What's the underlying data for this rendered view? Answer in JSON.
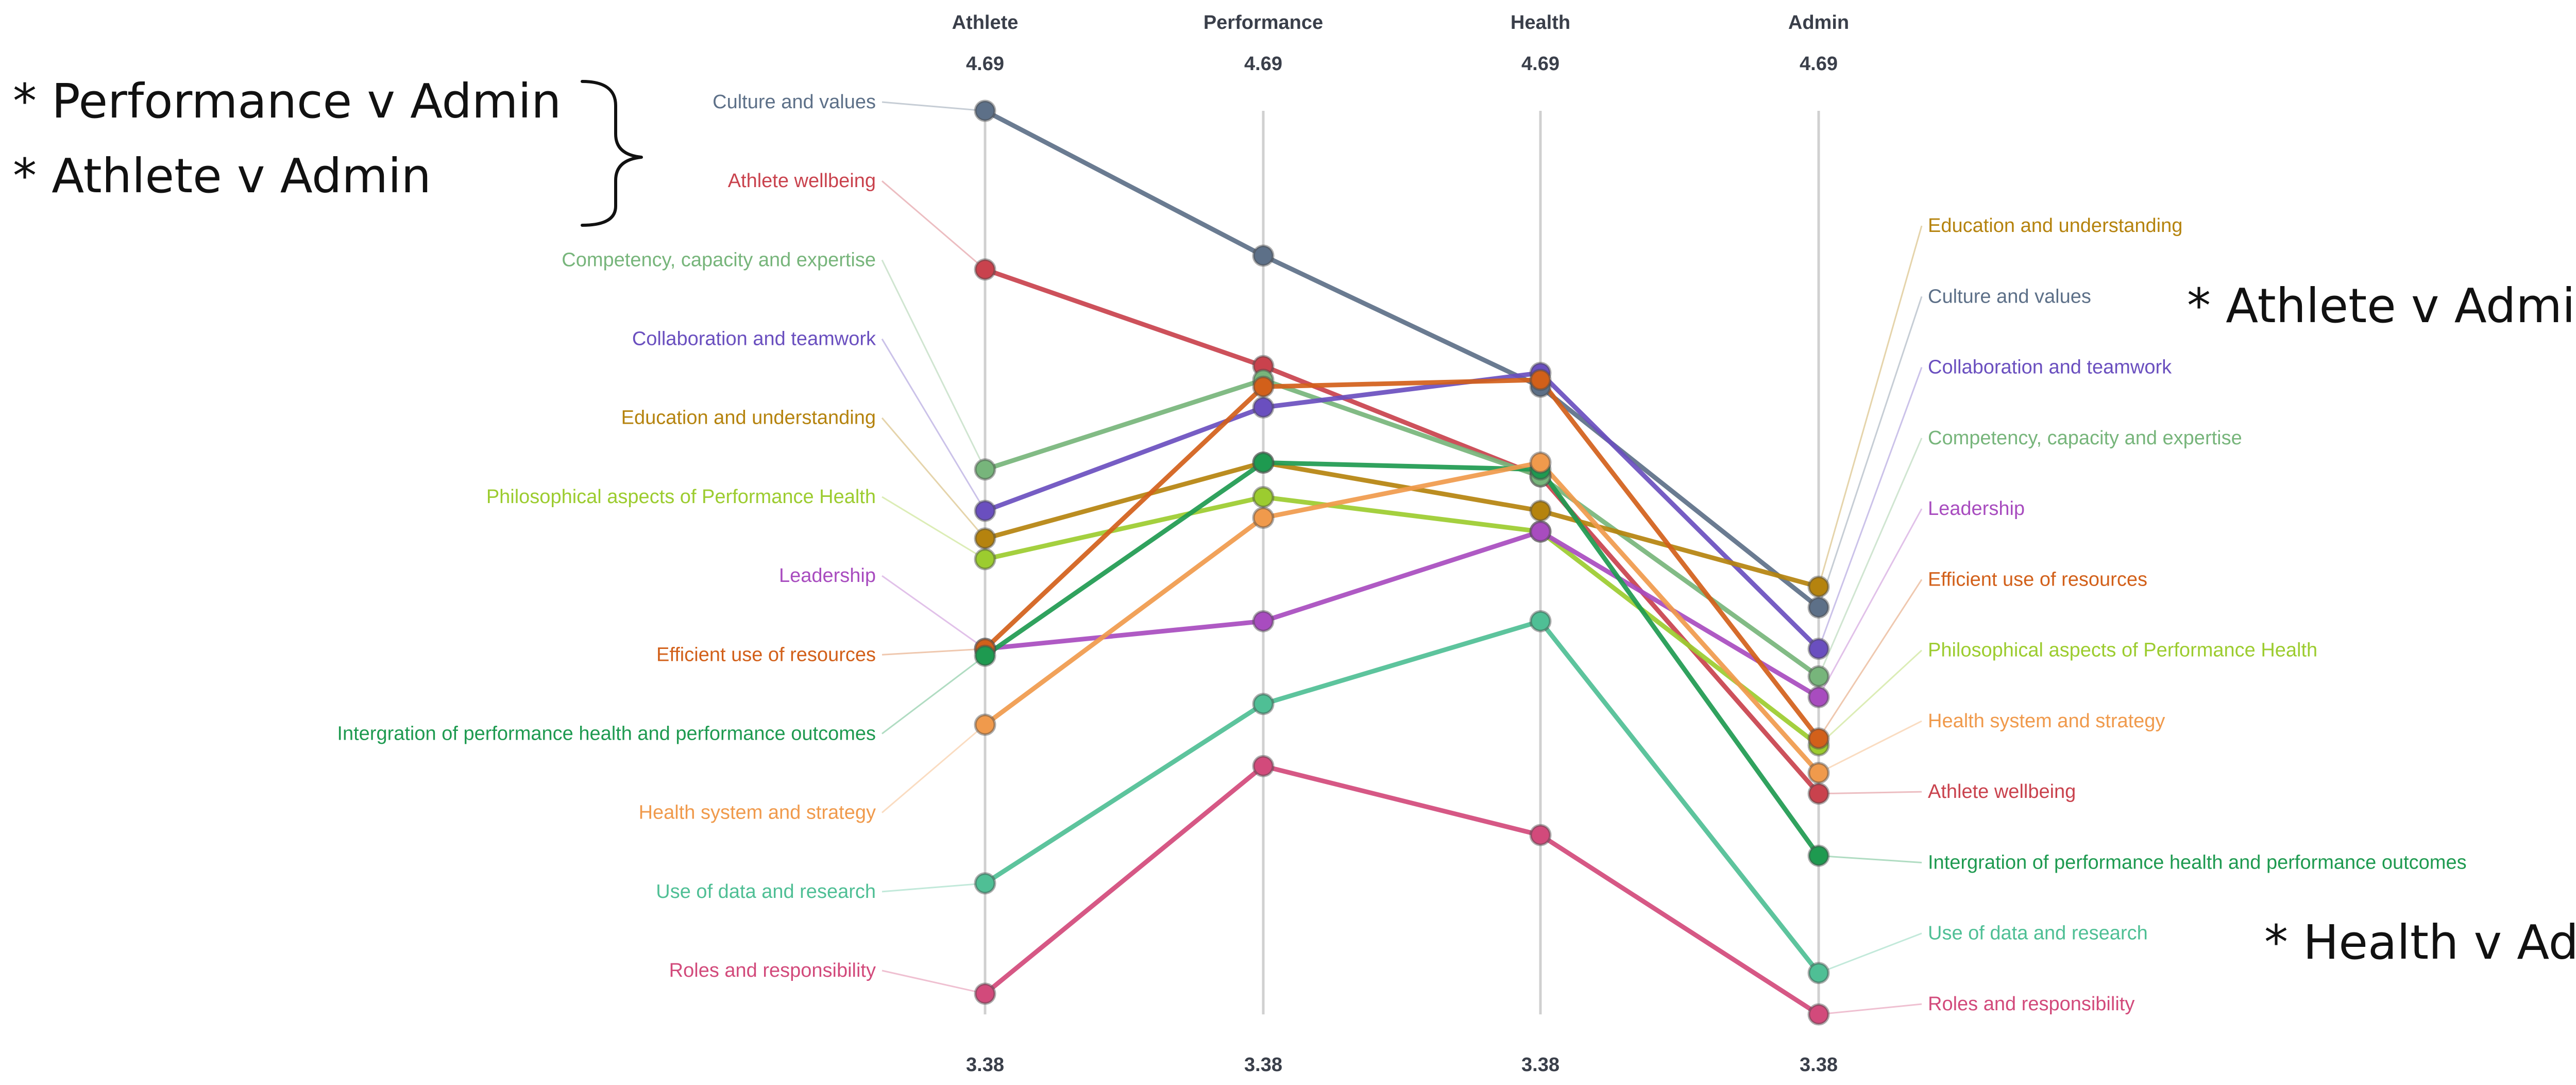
{
  "chart_data": {
    "type": "line",
    "subtype": "parallel-coordinates",
    "axes": [
      "Athlete",
      "Performance",
      "Health",
      "Admin"
    ],
    "axis_max_label": "4.69",
    "axis_min_label": "3.38",
    "ylim": [
      3.38,
      4.69
    ],
    "series": [
      {
        "name": "Culture and values",
        "color": "#5d7088",
        "values": [
          4.69,
          4.48,
          4.29,
          3.97
        ]
      },
      {
        "name": "Athlete wellbeing",
        "color": "#c9424d",
        "values": [
          4.46,
          4.32,
          4.16,
          3.7
        ]
      },
      {
        "name": "Competency, capacity and expertise",
        "color": "#77b57b",
        "values": [
          4.17,
          4.3,
          4.16,
          3.87
        ]
      },
      {
        "name": "Collaboration and teamwork",
        "color": "#6a4fbf",
        "values": [
          4.11,
          4.26,
          4.31,
          3.91
        ]
      },
      {
        "name": "Education and understanding",
        "color": "#b5830e",
        "values": [
          4.07,
          4.18,
          4.11,
          4.0
        ]
      },
      {
        "name": "Philosophical aspects of Performance Health",
        "color": "#9ccc2f",
        "values": [
          4.04,
          4.13,
          4.08,
          3.77
        ]
      },
      {
        "name": "Leadership",
        "color": "#a84cbf",
        "values": [
          3.91,
          3.95,
          4.08,
          3.84
        ]
      },
      {
        "name": "Efficient use of resources",
        "color": "#d2601a",
        "values": [
          3.91,
          4.29,
          4.3,
          3.78
        ]
      },
      {
        "name": "Intergration of performance health and performance outcomes",
        "color": "#1e9a50",
        "values": [
          3.9,
          4.18,
          4.17,
          3.61
        ]
      },
      {
        "name": "Health system and strategy",
        "color": "#f09a4c",
        "values": [
          3.8,
          4.1,
          4.18,
          3.73
        ]
      },
      {
        "name": "Use of data and research",
        "color": "#4fbf95",
        "values": [
          3.57,
          3.83,
          3.95,
          3.44
        ]
      },
      {
        "name": "Roles and responsibility",
        "color": "#d24a7b",
        "values": [
          3.41,
          3.74,
          3.64,
          3.38
        ]
      }
    ],
    "left_labels_order": [
      "Culture and values",
      "Athlete wellbeing",
      "Competency, capacity and expertise",
      "Collaboration and teamwork",
      "Education and understanding",
      "Philosophical aspects of Performance Health",
      "Leadership",
      "Efficient use of resources",
      "Intergration of performance health and performance outcomes",
      "Health system and strategy",
      "Use of data and research",
      "Roles and responsibility"
    ],
    "right_labels_order": [
      "Education and understanding",
      "Culture and values",
      "Collaboration and teamwork",
      "Competency, capacity and expertise",
      "Leadership",
      "Efficient use of resources",
      "Philosophical aspects of Performance Health",
      "Health system and strategy",
      "Athlete wellbeing",
      "Intergration of performance health and performance outcomes",
      "Use of data and research",
      "Roles and responsibility"
    ],
    "annotations": [
      "* Performance v Admin",
      "* Athlete v Admin",
      "* Athlete v Admin",
      "* Health v Admin"
    ]
  }
}
